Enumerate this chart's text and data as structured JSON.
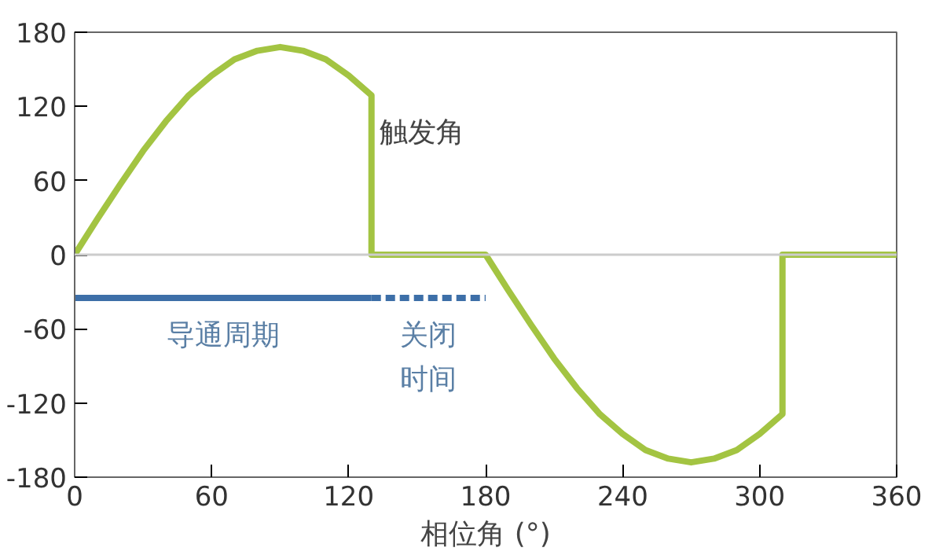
{
  "chart_data": {
    "type": "line",
    "xlabel": "相位角 (°)",
    "x": [
      0,
      10,
      20,
      30,
      40,
      50,
      60,
      70,
      80,
      90,
      100,
      110,
      120,
      130,
      130,
      180,
      190,
      200,
      210,
      220,
      230,
      240,
      250,
      260,
      270,
      280,
      290,
      300,
      310,
      310,
      360
    ],
    "series": [
      {
        "color": "#a3c442",
        "values": [
          0,
          29,
          57,
          84,
          108,
          129,
          145,
          158,
          165,
          168,
          165,
          158,
          145,
          129,
          0,
          0,
          -29,
          -57,
          -84,
          -108,
          -129,
          -145,
          -158,
          -165,
          -168,
          -165,
          -158,
          -145,
          -129,
          0,
          0
        ]
      },
      {
        "color": "#3d6fa8",
        "x": [
          0,
          130
        ],
        "values": [
          -35,
          -35
        ],
        "line_style": "solid"
      },
      {
        "color": "#3d6fa8",
        "x": [
          130,
          180
        ],
        "values": [
          -35,
          -35
        ],
        "line_style": "dashed"
      }
    ],
    "xlim": [
      0,
      360
    ],
    "ylim": [
      -180,
      180
    ],
    "xticks": [
      0,
      60,
      120,
      180,
      240,
      300,
      360
    ],
    "yticks": [
      -180,
      -120,
      -60,
      0,
      60,
      120,
      180
    ],
    "grid": false,
    "marker": "none",
    "line_style": "solid",
    "ref_lines": [
      {
        "axis": "y",
        "value": 0,
        "color": "#cccccc"
      }
    ],
    "annotations": [
      {
        "text": "触发角",
        "x": 130,
        "y": 129
      },
      {
        "text": "导通周期",
        "x": 65,
        "y": -35
      },
      {
        "text": "关闭",
        "x": 155,
        "y": -35
      },
      {
        "text": "时间",
        "x": 155,
        "y": -35
      }
    ]
  }
}
